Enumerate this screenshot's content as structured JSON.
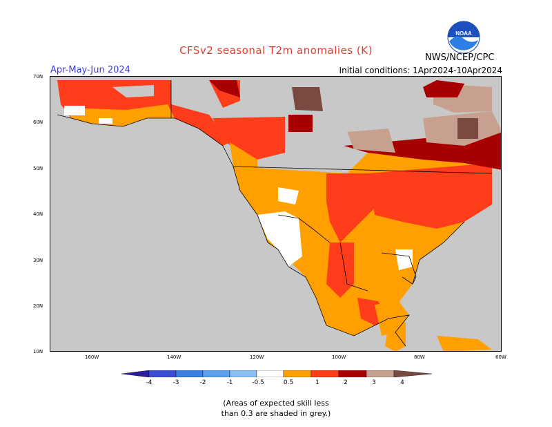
{
  "header": {
    "title": "CFSv2 seasonal T2m anomalies (K)",
    "season": "Apr-May-Jun 2024",
    "initial_conditions": "Initial conditions: 1Apr2024-10Apr2024",
    "agency": "NWS/NCEP/CPC",
    "logo_text": "NOAA"
  },
  "map": {
    "lat_labels": [
      "70N",
      "60N",
      "50N",
      "40N",
      "30N",
      "20N",
      "10N"
    ],
    "lon_labels": [
      "160W",
      "140W",
      "120W",
      "100W",
      "80W",
      "60W"
    ],
    "background_grey": "#c8c8c8"
  },
  "legend": {
    "labels": [
      "-4",
      "-3",
      "-2",
      "-1",
      "-0.5",
      "0.5",
      "1",
      "2",
      "3",
      "4"
    ],
    "colors": [
      "#2a1fa0",
      "#3b4fd4",
      "#3b7fe0",
      "#5fa0ec",
      "#8cc0f4",
      "#ffffff",
      "#ffa000",
      "#ff3d1a",
      "#a80000",
      "#c8a090",
      "#7a4a40"
    ]
  },
  "footnote": {
    "line1": "(Areas of expected skill less",
    "line2": "than 0.3 are shaded in grey.)"
  }
}
